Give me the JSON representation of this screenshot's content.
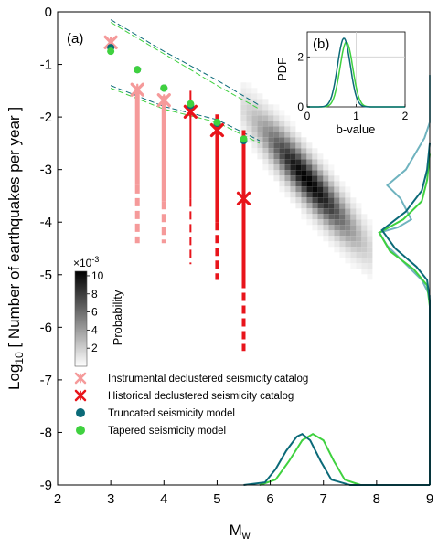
{
  "chart_data": {
    "type": "scatter",
    "xlabel": "M",
    "xlabel_sub": "w",
    "ylabel": "Log",
    "ylabel_sub": "10",
    "ylabel_rest": "[ Number of earthquakes per year ]",
    "xlim": [
      2,
      9
    ],
    "ylim": [
      -9,
      0
    ],
    "x_ticks": [
      2,
      3,
      4,
      5,
      6,
      7,
      8,
      9
    ],
    "y_ticks": [
      -9,
      -8,
      -7,
      -6,
      -5,
      -4,
      -3,
      -2,
      -1,
      0
    ],
    "panel_label": "(a)",
    "series": [
      {
        "name": "Instrumental declustered seismicity catalog",
        "color": "#f59a9a",
        "marker": "asterisk",
        "points": [
          [
            3.0,
            -0.58
          ],
          [
            3.5,
            -1.48
          ],
          [
            4.0,
            -1.68
          ]
        ],
        "error_bars": [
          {
            "x": 3.0,
            "solid": [
              -0.55,
              -0.6
            ],
            "dashed": [
              -0.6,
              -0.6
            ]
          },
          {
            "x": 3.5,
            "solid": [
              -1.5,
              -3.3
            ],
            "dashed": [
              -3.3,
              -4.4
            ]
          },
          {
            "x": 4.0,
            "solid": [
              -1.6,
              -3.6
            ],
            "dashed": [
              -3.6,
              -4.4
            ]
          }
        ]
      },
      {
        "name": "Historical declustered seismicity catalog",
        "color": "#e8141b",
        "marker": "asterisk",
        "points": [
          [
            4.5,
            -1.9
          ],
          [
            5.0,
            -2.25
          ],
          [
            5.5,
            -3.55
          ]
        ],
        "error_bars": [
          {
            "x": 4.5,
            "solid": [
              -1.5,
              -3.55
            ],
            "dashed": [
              -3.55,
              -4.8
            ]
          },
          {
            "x": 5.0,
            "solid": [
              -1.95,
              -4.0
            ],
            "dashed": [
              -4.0,
              -5.1
            ]
          },
          {
            "x": 5.5,
            "solid": [
              -2.25,
              -5.1
            ],
            "dashed": [
              -5.1,
              -6.45
            ]
          }
        ]
      },
      {
        "name": "Truncated seismicity model",
        "color": "#0b6a78",
        "marker": "circle",
        "points": [
          [
            3.0,
            -0.68
          ],
          [
            3.5,
            -1.1
          ],
          [
            4.0,
            -1.45
          ],
          [
            4.5,
            -1.78
          ],
          [
            5.0,
            -2.12
          ],
          [
            5.5,
            -2.45
          ]
        ]
      },
      {
        "name": "Tapered seismicity model",
        "color": "#3fd13f",
        "marker": "circle",
        "points": [
          [
            3.0,
            -0.75
          ],
          [
            3.5,
            -1.1
          ],
          [
            4.0,
            -1.45
          ],
          [
            4.5,
            -1.75
          ],
          [
            5.0,
            -2.1
          ],
          [
            5.5,
            -2.42
          ]
        ]
      }
    ],
    "confidence_bounds": [
      {
        "color": "#0b6a78",
        "upper": [
          [
            3.0,
            -0.15
          ],
          [
            4.0,
            -0.75
          ],
          [
            5.0,
            -1.3
          ],
          [
            5.8,
            -1.78
          ]
        ],
        "lower": [
          [
            3.0,
            -1.4
          ],
          [
            4.0,
            -1.8
          ],
          [
            5.0,
            -2.05
          ],
          [
            5.8,
            -2.45
          ]
        ]
      },
      {
        "color": "#3fd13f",
        "upper": [
          [
            3.0,
            -0.2
          ],
          [
            4.0,
            -0.8
          ],
          [
            5.0,
            -1.4
          ],
          [
            5.8,
            -1.85
          ]
        ],
        "lower": [
          [
            3.0,
            -1.45
          ],
          [
            4.0,
            -1.85
          ],
          [
            5.0,
            -2.1
          ],
          [
            5.8,
            -2.5
          ]
        ]
      }
    ],
    "density": {
      "center_x": 6.65,
      "center_y": -3.15,
      "slope": -1.25,
      "colorbar": {
        "label": "Probability",
        "multiplier": "×10",
        "multiplier_exp": "-3",
        "ticks": [
          2,
          4,
          6,
          8,
          10
        ]
      }
    },
    "marginal_x": {
      "truncated": [
        [
          5.5,
          -9.0
        ],
        [
          5.9,
          -8.95
        ],
        [
          6.1,
          -8.7
        ],
        [
          6.3,
          -8.35
        ],
        [
          6.5,
          -8.08
        ],
        [
          6.6,
          -8.03
        ],
        [
          6.75,
          -8.15
        ],
        [
          6.95,
          -8.55
        ],
        [
          7.15,
          -8.9
        ],
        [
          7.5,
          -9.0
        ],
        [
          9.0,
          -9.0
        ]
      ],
      "tapered": [
        [
          5.8,
          -9.0
        ],
        [
          6.1,
          -8.9
        ],
        [
          6.35,
          -8.55
        ],
        [
          6.6,
          -8.15
        ],
        [
          6.8,
          -8.03
        ],
        [
          7.0,
          -8.15
        ],
        [
          7.2,
          -8.55
        ],
        [
          7.4,
          -8.9
        ],
        [
          7.7,
          -9.0
        ],
        [
          9.0,
          -9.0
        ]
      ]
    },
    "marginal_y": {
      "instrumental_color": "#6fb3bf",
      "instrumental": [
        [
          9.0,
          -1.2
        ],
        [
          9.0,
          -2.1
        ],
        [
          8.9,
          -2.4
        ],
        [
          8.55,
          -3.0
        ],
        [
          8.2,
          -3.3
        ],
        [
          8.45,
          -3.55
        ],
        [
          8.65,
          -3.95
        ],
        [
          8.4,
          -4.1
        ],
        [
          8.05,
          -4.2
        ],
        [
          8.2,
          -4.45
        ],
        [
          8.55,
          -4.8
        ],
        [
          8.85,
          -5.1
        ],
        [
          9.0,
          -5.4
        ],
        [
          9.0,
          -9.0
        ]
      ],
      "truncated": [
        [
          9.0,
          -2.5
        ],
        [
          8.95,
          -3.0
        ],
        [
          8.85,
          -3.4
        ],
        [
          8.55,
          -3.8
        ],
        [
          8.1,
          -4.15
        ],
        [
          8.35,
          -4.5
        ],
        [
          8.75,
          -4.85
        ],
        [
          8.95,
          -5.1
        ],
        [
          9.0,
          -5.5
        ],
        [
          9.0,
          -9.0
        ]
      ],
      "tapered": [
        [
          9.0,
          -2.7
        ],
        [
          8.95,
          -3.2
        ],
        [
          8.85,
          -3.6
        ],
        [
          8.5,
          -3.95
        ],
        [
          8.05,
          -4.2
        ],
        [
          8.25,
          -4.55
        ],
        [
          8.7,
          -4.9
        ],
        [
          8.95,
          -5.2
        ],
        [
          9.0,
          -5.6
        ],
        [
          9.0,
          -9.0
        ]
      ]
    },
    "inset": {
      "panel_label": "(b)",
      "xlabel": "b-value",
      "ylabel": "PDF",
      "xlim": [
        0,
        2
      ],
      "ylim": [
        0,
        3
      ],
      "x_ticks": [
        0,
        1,
        2
      ],
      "y_ticks": [
        0,
        2
      ],
      "grid_x": 1,
      "grid_y": 2,
      "truncated_peak": [
        0.75,
        2.75
      ],
      "tapered_peak": [
        0.8,
        2.6
      ],
      "width": 0.13
    }
  }
}
